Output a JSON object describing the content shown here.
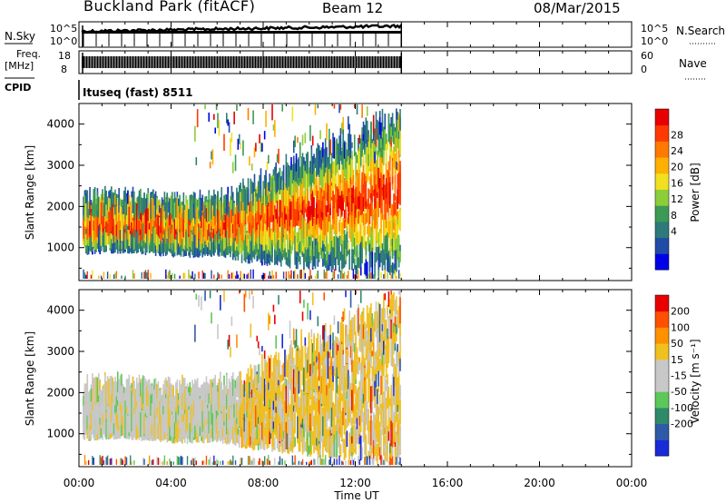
{
  "header": {
    "station": "Buckland Park (fitACF)",
    "beam": "Beam 12",
    "date": "08/Mar/2015"
  },
  "status_panels": {
    "nsky_label": "N.Sky",
    "nsky_top": "10^5",
    "nsky_bottom": "10^0",
    "nsearch_label": "N.Search",
    "nsearch_top": "10^5",
    "nsearch_bottom": "10^0",
    "freq_label": "Freq.",
    "freq_unit": "[MHz]",
    "freq_top": "18",
    "freq_bottom": "8",
    "nave_label": "Nave",
    "nave_top": "60",
    "nave_bottom": "0",
    "cpid_label": "CPID",
    "cpid_value": "Ituseq (fast) 8511"
  },
  "chart_data": [
    {
      "type": "heatmap",
      "name": "power",
      "ylabel": "Slant Range [km]",
      "yticks": [
        1000,
        2000,
        3000,
        4000
      ],
      "ylim": [
        200,
        4500
      ],
      "xlim_hours": [
        0,
        24
      ],
      "colorbar_label": "Power [dB]",
      "colorbar_ticks": [
        "28",
        "24",
        "20",
        "16",
        "12",
        "8",
        "4"
      ],
      "colors": [
        "#0000e8",
        "#204ca8",
        "#2e7a7a",
        "#3c9a55",
        "#8ccd3a",
        "#f0e020",
        "#ffb000",
        "#ff7a00",
        "#ff3a00",
        "#e80000"
      ],
      "data_extent_hours": [
        0.2,
        14.0
      ]
    },
    {
      "type": "heatmap",
      "name": "velocity",
      "ylabel": "Slant Range [km]",
      "yticks": [
        1000,
        2000,
        3000,
        4000
      ],
      "ylim": [
        200,
        4500
      ],
      "xlim_hours": [
        0,
        24
      ],
      "colorbar_label": "Velocity [m s⁻¹]",
      "colorbar_ticks": [
        "200",
        "100",
        "50",
        "15",
        "-15",
        "-50",
        "-100",
        "-200"
      ],
      "colors": [
        "#1a2ad8",
        "#2f5aa8",
        "#2f8a6a",
        "#5cc85a",
        "#c8c8c8",
        "#c8c8c8",
        "#f0c020",
        "#ff9000",
        "#ff5000",
        "#e80000"
      ],
      "data_extent_hours": [
        0.2,
        14.0
      ]
    }
  ],
  "time_axis": {
    "ticks": [
      "00:00",
      "04:00",
      "08:00",
      "12:00",
      "16:00",
      "20:00",
      "00:00"
    ],
    "label": "Time UT"
  }
}
